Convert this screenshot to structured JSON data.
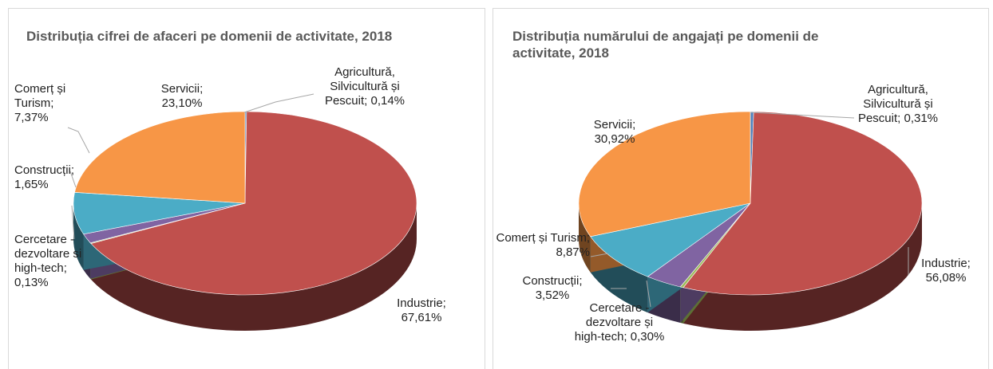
{
  "chart_data": [
    {
      "type": "pie",
      "title": "Distribuția cifrei de afaceri pe domenii de activitate, 2018",
      "categories": [
        "Agricultură, Silvicultură și Pescuit;",
        "Industrie;",
        "Cercetare - dezvoltare si high-tech;",
        "Construcții;",
        "Comerț și Turism;",
        "Servicii;"
      ],
      "values": [
        0.14,
        67.61,
        0.13,
        1.65,
        7.37,
        23.1
      ],
      "value_labels": [
        "0,14%",
        "67,61%",
        "0,13%",
        "1,65%",
        "7,37%",
        "23,10%"
      ],
      "colors": [
        "#4f81bd",
        "#c0504d",
        "#9bbb59",
        "#8064a2",
        "#4bacc6",
        "#f79646"
      ]
    },
    {
      "type": "pie",
      "title": "Distribuția numărului de angajați pe domenii de activitate, 2018",
      "categories": [
        "Agricultură, Silvicultură și Pescuit;",
        "Industrie;",
        "Cercetare - dezvoltare și high-tech;",
        "Construcții;",
        "Comerț și Turism;",
        "Servicii;"
      ],
      "values": [
        0.31,
        56.08,
        0.3,
        3.52,
        8.87,
        30.92
      ],
      "value_labels": [
        "0,31%",
        "56,08%",
        "0,30%",
        "3,52%",
        "8,87%",
        "30,92%"
      ],
      "colors": [
        "#4f81bd",
        "#c0504d",
        "#9bbb59",
        "#8064a2",
        "#4bacc6",
        "#f79646"
      ]
    }
  ]
}
